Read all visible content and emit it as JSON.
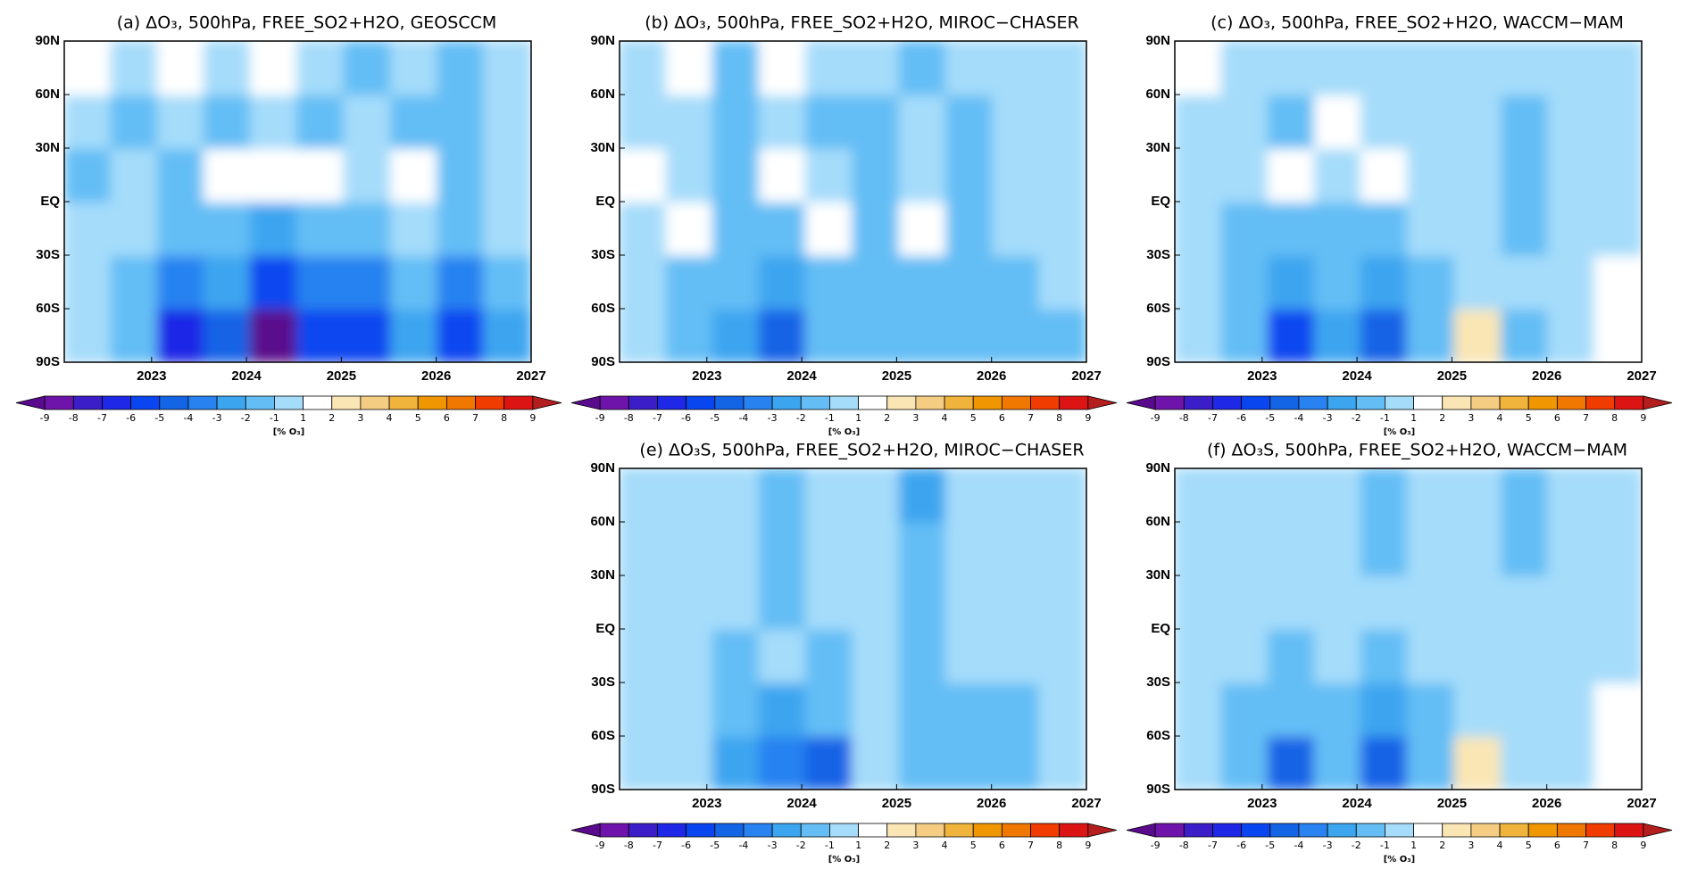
{
  "chart_data": [
    {
      "type": "contour",
      "title": "(a) ΔO₃, 500hPa, FREE_SO2+H2O, GEOSCCM",
      "x": [
        2022.33,
        2022.82,
        2023.31,
        2023.8,
        2024.29,
        2024.78,
        2025.28,
        2025.77,
        2026.26,
        2026.75
      ],
      "y": [
        -75,
        -45,
        -15,
        15,
        45,
        75
      ],
      "z": [
        [
          0,
          -1.2,
          -6.2,
          -4.2,
          -9.3,
          -5.2,
          -5.3,
          -2.2,
          -5.2,
          -2.2
        ],
        [
          0,
          -1.2,
          -3.2,
          -2.2,
          -5.2,
          -3.2,
          -3.2,
          -1.2,
          -3.2,
          -1.2
        ],
        [
          0,
          0,
          -1.2,
          -1.2,
          -2.2,
          -1.5,
          -1.2,
          0,
          -1.2,
          0
        ],
        [
          -1.2,
          0,
          -1.2,
          1.3,
          1.3,
          1.3,
          0,
          1.3,
          -1.2,
          0
        ],
        [
          0,
          -1.2,
          0,
          -1.2,
          0,
          -1.2,
          0,
          -1.2,
          -1.2,
          0
        ],
        [
          1.3,
          0,
          1.3,
          0,
          1.3,
          0,
          -1.2,
          0,
          -1.2,
          0
        ]
      ],
      "xlim": [
        2022.08,
        2027
      ],
      "xticks": [
        2023,
        2024,
        2025,
        2026,
        2027
      ],
      "ylim": [
        -90,
        90
      ],
      "yticks": [
        {
          "value": -90,
          "label": "90S"
        },
        {
          "value": -60,
          "label": "60S"
        },
        {
          "value": -30,
          "label": "30S"
        },
        {
          "value": 0,
          "label": "EQ"
        },
        {
          "value": 30,
          "label": "30N"
        },
        {
          "value": 60,
          "label": "60N"
        },
        {
          "value": 90,
          "label": "90N"
        }
      ],
      "colorbar": {
        "levels": [
          -9,
          -8,
          -7,
          -6,
          -5,
          -4,
          -3,
          -2,
          -1,
          1,
          2,
          3,
          4,
          5,
          6,
          7,
          8,
          9
        ],
        "colors": [
          "#5a0a8c",
          "#6e14aa",
          "#3c1ec8",
          "#1e28e6",
          "#0a46f0",
          "#1464e6",
          "#2882f0",
          "#3ca5f0",
          "#64bef5",
          "#a5dcfa",
          "#ffffff",
          "#fae6b4",
          "#f5cd82",
          "#f0b43c",
          "#f09600",
          "#f07800",
          "#f03c00",
          "#dc1414",
          "#b41e1e"
        ],
        "label": "[% O₃]"
      }
    },
    {
      "type": "contour",
      "title": "(b) ΔO₃, 500hPa, FREE_SO2+H2O, MIROC−CHASER",
      "x": [
        2022.33,
        2022.82,
        2023.31,
        2023.8,
        2024.29,
        2024.78,
        2025.28,
        2025.77,
        2026.26,
        2026.75
      ],
      "y": [
        -75,
        -45,
        -15,
        15,
        45,
        75
      ],
      "z": [
        [
          0,
          -1.2,
          -2.2,
          -4.2,
          -1.5,
          -1.2,
          -1.5,
          -1.2,
          -1.5,
          -1.2
        ],
        [
          0,
          -1.2,
          -1.5,
          -2.2,
          -1.5,
          -1.2,
          -1.5,
          -1.2,
          -1.2,
          0
        ],
        [
          0,
          1.3,
          -1.2,
          -1.2,
          1.3,
          -1.2,
          1.3,
          -1.2,
          0,
          0
        ],
        [
          1.3,
          0,
          -1.2,
          1.3,
          0,
          -1.2,
          0,
          -1.2,
          0,
          0
        ],
        [
          0,
          0,
          -1.2,
          0,
          -1.2,
          -1.2,
          0,
          -1.2,
          0,
          0
        ],
        [
          0,
          1.3,
          -1.2,
          1.3,
          0,
          0,
          -1.2,
          0,
          0,
          0
        ]
      ],
      "xlim": [
        2022.08,
        2027
      ],
      "xticks": [
        2023,
        2024,
        2025,
        2026,
        2027
      ],
      "ylim": [
        -90,
        90
      ],
      "yticks": [
        {
          "value": -90,
          "label": "90S"
        },
        {
          "value": -60,
          "label": "60S"
        },
        {
          "value": -30,
          "label": "30S"
        },
        {
          "value": 0,
          "label": "EQ"
        },
        {
          "value": 30,
          "label": "30N"
        },
        {
          "value": 60,
          "label": "60N"
        },
        {
          "value": 90,
          "label": "90N"
        }
      ],
      "colorbar": {
        "levels": [
          -9,
          -8,
          -7,
          -6,
          -5,
          -4,
          -3,
          -2,
          -1,
          1,
          2,
          3,
          4,
          5,
          6,
          7,
          8,
          9
        ],
        "colors": [
          "#5a0a8c",
          "#6e14aa",
          "#3c1ec8",
          "#1e28e6",
          "#0a46f0",
          "#1464e6",
          "#2882f0",
          "#3ca5f0",
          "#64bef5",
          "#a5dcfa",
          "#ffffff",
          "#fae6b4",
          "#f5cd82",
          "#f0b43c",
          "#f09600",
          "#f07800",
          "#f03c00",
          "#dc1414",
          "#b41e1e"
        ],
        "label": "[% O₃]"
      }
    },
    {
      "type": "contour",
      "title": "(c) ΔO₃, 500hPa, FREE_SO2+H2O, WACCM−MAM",
      "x": [
        2022.33,
        2022.82,
        2023.31,
        2023.8,
        2024.29,
        2024.78,
        2025.28,
        2025.77,
        2026.26,
        2026.75
      ],
      "y": [
        -75,
        -45,
        -15,
        15,
        45,
        75
      ],
      "z": [
        [
          0,
          -1.2,
          -5.2,
          -2.2,
          -4.2,
          -1.2,
          2.2,
          -1.2,
          0,
          1.5
        ],
        [
          0,
          -1.2,
          -2.2,
          -1.5,
          -2.2,
          -1.2,
          0,
          0,
          0,
          1.3
        ],
        [
          0,
          -1.2,
          -1.2,
          -1.2,
          -1.2,
          0,
          0,
          -1.2,
          0,
          0
        ],
        [
          0,
          0,
          1.3,
          0,
          1.3,
          0,
          0,
          -1.2,
          0,
          0
        ],
        [
          0,
          0,
          -1.2,
          1.3,
          0,
          0,
          0,
          -1.2,
          0,
          0
        ],
        [
          1.3,
          0,
          0,
          0,
          0,
          0,
          0,
          0,
          0,
          0
        ]
      ],
      "xlim": [
        2022.08,
        2027
      ],
      "xticks": [
        2023,
        2024,
        2025,
        2026,
        2027
      ],
      "ylim": [
        -90,
        90
      ],
      "yticks": [
        {
          "value": -90,
          "label": "90S"
        },
        {
          "value": -60,
          "label": "60S"
        },
        {
          "value": -30,
          "label": "30S"
        },
        {
          "value": 0,
          "label": "EQ"
        },
        {
          "value": 30,
          "label": "30N"
        },
        {
          "value": 60,
          "label": "60N"
        },
        {
          "value": 90,
          "label": "90N"
        }
      ],
      "colorbar": {
        "levels": [
          -9,
          -8,
          -7,
          -6,
          -5,
          -4,
          -3,
          -2,
          -1,
          1,
          2,
          3,
          4,
          5,
          6,
          7,
          8,
          9
        ],
        "colors": [
          "#5a0a8c",
          "#6e14aa",
          "#3c1ec8",
          "#1e28e6",
          "#0a46f0",
          "#1464e6",
          "#2882f0",
          "#3ca5f0",
          "#64bef5",
          "#a5dcfa",
          "#ffffff",
          "#fae6b4",
          "#f5cd82",
          "#f0b43c",
          "#f09600",
          "#f07800",
          "#f03c00",
          "#dc1414",
          "#b41e1e"
        ],
        "label": "[% O₃]"
      }
    },
    {
      "type": "contour",
      "title": "(e) ΔO₃S, 500hPa, FREE_SO2+H2O, MIROC−CHASER",
      "x": [
        2022.33,
        2022.82,
        2023.31,
        2023.8,
        2024.29,
        2024.78,
        2025.28,
        2025.77,
        2026.26,
        2026.75
      ],
      "y": [
        -75,
        -45,
        -15,
        15,
        45,
        75
      ],
      "z": [
        [
          0,
          0,
          -2.2,
          -3.2,
          -4.2,
          0,
          -1.5,
          -1.2,
          -1.2,
          0
        ],
        [
          0,
          0,
          -1.5,
          -2.2,
          -1.5,
          0,
          -1.5,
          -1.2,
          -1.2,
          0
        ],
        [
          0,
          0,
          -1.2,
          0,
          -1.2,
          0,
          -1.2,
          0,
          0,
          0
        ],
        [
          0,
          0,
          0,
          -1.2,
          0,
          0,
          -1.2,
          0,
          0,
          0
        ],
        [
          0,
          0,
          0,
          -1.2,
          0,
          0,
          -1.5,
          0,
          0,
          0
        ],
        [
          0,
          0,
          0,
          -1.2,
          0,
          0,
          -2.2,
          0,
          0,
          0
        ]
      ],
      "xlim": [
        2022.08,
        2027
      ],
      "xticks": [
        2023,
        2024,
        2025,
        2026,
        2027
      ],
      "ylim": [
        -90,
        90
      ],
      "yticks": [
        {
          "value": -90,
          "label": "90S"
        },
        {
          "value": -60,
          "label": "60S"
        },
        {
          "value": -30,
          "label": "30S"
        },
        {
          "value": 0,
          "label": "EQ"
        },
        {
          "value": 30,
          "label": "30N"
        },
        {
          "value": 60,
          "label": "60N"
        },
        {
          "value": 90,
          "label": "90N"
        }
      ],
      "colorbar": {
        "levels": [
          -9,
          -8,
          -7,
          -6,
          -5,
          -4,
          -3,
          -2,
          -1,
          1,
          2,
          3,
          4,
          5,
          6,
          7,
          8,
          9
        ],
        "colors": [
          "#5a0a8c",
          "#6e14aa",
          "#3c1ec8",
          "#1e28e6",
          "#0a46f0",
          "#1464e6",
          "#2882f0",
          "#3ca5f0",
          "#64bef5",
          "#a5dcfa",
          "#ffffff",
          "#fae6b4",
          "#f5cd82",
          "#f0b43c",
          "#f09600",
          "#f07800",
          "#f03c00",
          "#dc1414",
          "#b41e1e"
        ],
        "label": "[% O₃]"
      }
    },
    {
      "type": "contour",
      "title": "(f) ΔO₃S, 500hPa, FREE_SO2+H2O, WACCM−MAM",
      "x": [
        2022.33,
        2022.82,
        2023.31,
        2023.8,
        2024.29,
        2024.78,
        2025.28,
        2025.77,
        2026.26,
        2026.75
      ],
      "y": [
        -75,
        -45,
        -15,
        15,
        45,
        75
      ],
      "z": [
        [
          0,
          -1.2,
          -4.2,
          -1.5,
          -4.2,
          -1.2,
          2.2,
          0,
          0,
          1.5
        ],
        [
          0,
          -1.2,
          -1.5,
          -1.2,
          -2.2,
          -1.2,
          0,
          0,
          0,
          1.3
        ],
        [
          0,
          0,
          -1.2,
          0,
          -1.2,
          0,
          0,
          0,
          0,
          0
        ],
        [
          0,
          0,
          0,
          0,
          0,
          0,
          0,
          0,
          0,
          0
        ],
        [
          0,
          0,
          0,
          0,
          -1.2,
          0,
          0,
          -1.2,
          0,
          0
        ],
        [
          0,
          0,
          0,
          0,
          -1.2,
          0,
          0,
          -1.2,
          0,
          0
        ]
      ],
      "xlim": [
        2022.08,
        2027
      ],
      "xticks": [
        2023,
        2024,
        2025,
        2026,
        2027
      ],
      "ylim": [
        -90,
        90
      ],
      "yticks": [
        {
          "value": -90,
          "label": "90S"
        },
        {
          "value": -60,
          "label": "60S"
        },
        {
          "value": -30,
          "label": "30S"
        },
        {
          "value": 0,
          "label": "EQ"
        },
        {
          "value": 30,
          "label": "30N"
        },
        {
          "value": 60,
          "label": "60N"
        },
        {
          "value": 90,
          "label": "90N"
        }
      ],
      "colorbar": {
        "levels": [
          -9,
          -8,
          -7,
          -6,
          -5,
          -4,
          -3,
          -2,
          -1,
          1,
          2,
          3,
          4,
          5,
          6,
          7,
          8,
          9
        ],
        "colors": [
          "#5a0a8c",
          "#6e14aa",
          "#3c1ec8",
          "#1e28e6",
          "#0a46f0",
          "#1464e6",
          "#2882f0",
          "#3ca5f0",
          "#64bef5",
          "#a5dcfa",
          "#ffffff",
          "#fae6b4",
          "#f5cd82",
          "#f0b43c",
          "#f09600",
          "#f07800",
          "#f03c00",
          "#dc1414",
          "#b41e1e"
        ],
        "label": "[% O₃]"
      }
    }
  ]
}
